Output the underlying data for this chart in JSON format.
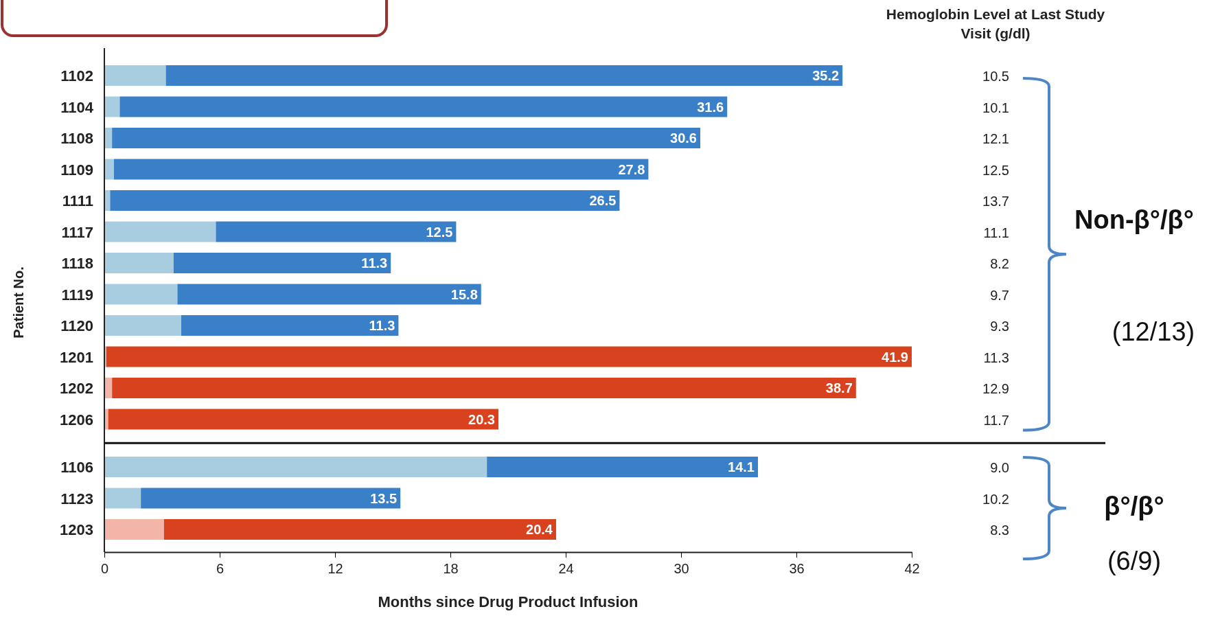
{
  "chart_data": {
    "type": "bar",
    "orientation": "horizontal",
    "stacked": true,
    "xlabel": "Months since Drug Product Infusion",
    "ylabel": "Patient No.",
    "categories": [
      "1102",
      "1104",
      "1108",
      "1109",
      "1111",
      "1117",
      "1118",
      "1119",
      "1120",
      "1201",
      "1202",
      "1206",
      "1106",
      "1123",
      "1203"
    ],
    "series": [
      {
        "colors": [
          "#a9cde0",
          "#a9cde0",
          "#a9cde0",
          "#a9cde0",
          "#a9cde0",
          "#a9cde0",
          "#a9cde0",
          "#a9cde0",
          "#a9cde0",
          "#f2b5a8",
          "#f2b5a8",
          "#f2b5a8",
          "#a9cde0",
          "#a9cde0",
          "#f2b5a8"
        ],
        "values": [
          3.2,
          0.8,
          0.4,
          0.5,
          0.3,
          5.8,
          3.6,
          3.8,
          4.0,
          0.1,
          0.4,
          0.2,
          19.9,
          1.9,
          3.1
        ]
      },
      {
        "colors": [
          "#3a80c9",
          "#3a80c9",
          "#3a80c9",
          "#3a80c9",
          "#3a80c9",
          "#3a80c9",
          "#3a80c9",
          "#3a80c9",
          "#3a80c9",
          "#d9421f",
          "#d9421f",
          "#d9421f",
          "#3a80c9",
          "#3a80c9",
          "#d9421f"
        ],
        "values": [
          35.2,
          31.6,
          30.6,
          27.8,
          26.5,
          12.5,
          11.3,
          15.8,
          11.3,
          41.9,
          38.7,
          20.3,
          14.1,
          13.5,
          20.4
        ],
        "value_labels": [
          "35.2",
          "31.6",
          "30.6",
          "27.8",
          "26.5",
          "12.5",
          "11.3",
          "15.8",
          "11.3",
          "41.9",
          "38.7",
          "20.3",
          "14.1",
          "13.5",
          "20.4"
        ]
      }
    ],
    "xlim": [
      0,
      42
    ],
    "xticks": [
      0,
      6,
      12,
      18,
      24,
      30,
      36,
      42
    ],
    "annotations": [
      "Hemoglobin Level at Last Study Visit (g/dl)",
      "10.5",
      "10.1",
      "12.1",
      "12.5",
      "13.7",
      "11.1",
      "8.2",
      "9.7",
      "9.3",
      "11.3",
      "12.9",
      "11.7",
      "9.0",
      "10.2",
      "8.3",
      "Non-β°/β°",
      "(12/13)",
      "β°/β°",
      "(6/9)"
    ]
  }
}
